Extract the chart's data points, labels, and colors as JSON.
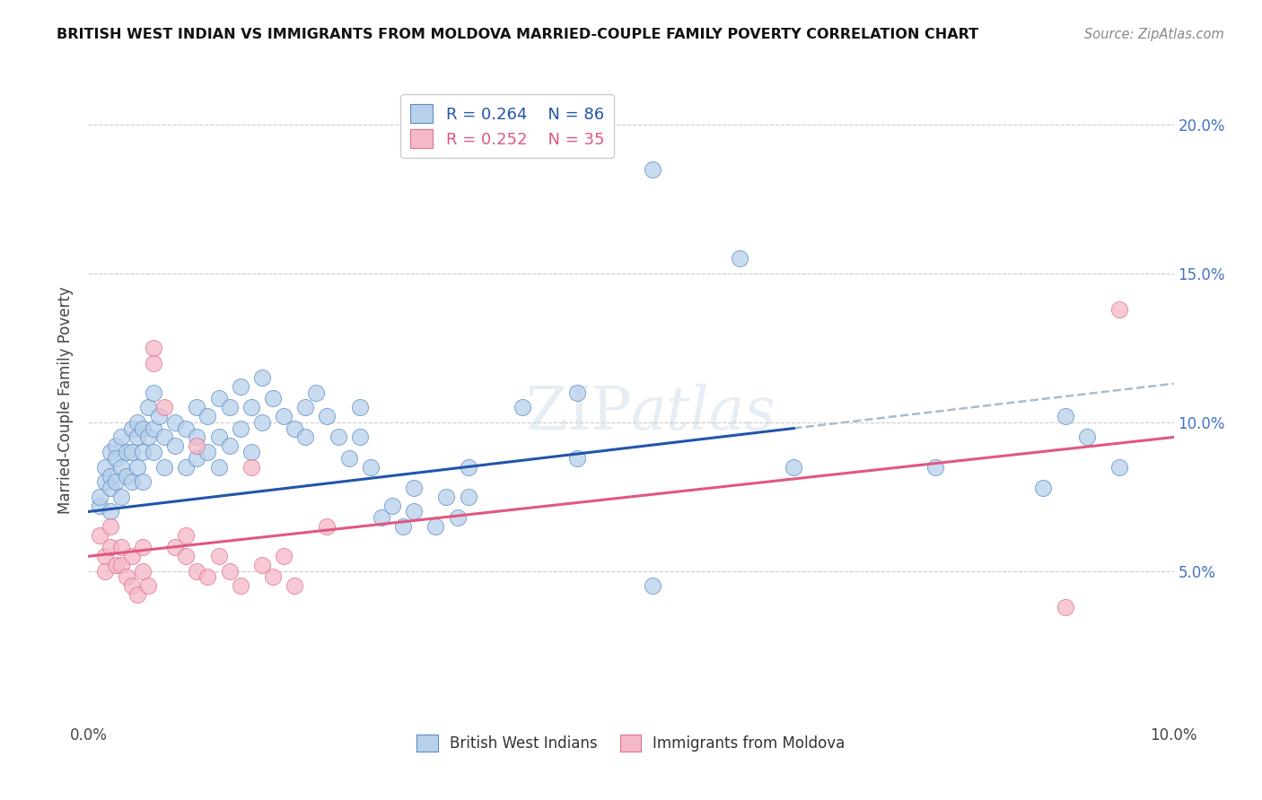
{
  "title": "BRITISH WEST INDIAN VS IMMIGRANTS FROM MOLDOVA MARRIED-COUPLE FAMILY POVERTY CORRELATION CHART",
  "source": "Source: ZipAtlas.com",
  "ylabel": "Married-Couple Family Poverty",
  "xlim": [
    0.0,
    10.0
  ],
  "ylim": [
    0.0,
    21.5
  ],
  "ytick_values": [
    5.0,
    10.0,
    15.0,
    20.0
  ],
  "ytick_labels": [
    "5.0%",
    "10.0%",
    "15.0%",
    "20.0%"
  ],
  "blue_color": "#b8d0ea",
  "blue_edge_color": "#5b8ec8",
  "blue_line_color": "#2255aa",
  "pink_color": "#f5b8c8",
  "pink_edge_color": "#e07090",
  "pink_line_color": "#e05880",
  "dashed_color": "#aabbcc",
  "blue_line_x0": 0.0,
  "blue_line_y0": 7.0,
  "blue_line_x1": 6.5,
  "blue_line_y1": 9.8,
  "blue_dash_x0": 6.5,
  "blue_dash_y0": 9.8,
  "blue_dash_x1": 10.0,
  "blue_dash_y1": 11.3,
  "pink_line_x0": 0.0,
  "pink_line_y0": 5.5,
  "pink_line_x1": 10.0,
  "pink_line_y1": 9.5,
  "blue_scatter": [
    [
      0.1,
      7.2
    ],
    [
      0.1,
      7.5
    ],
    [
      0.15,
      8.0
    ],
    [
      0.15,
      8.5
    ],
    [
      0.2,
      9.0
    ],
    [
      0.2,
      8.2
    ],
    [
      0.2,
      7.8
    ],
    [
      0.2,
      7.0
    ],
    [
      0.25,
      9.2
    ],
    [
      0.25,
      8.8
    ],
    [
      0.25,
      8.0
    ],
    [
      0.3,
      9.5
    ],
    [
      0.3,
      8.5
    ],
    [
      0.3,
      7.5
    ],
    [
      0.35,
      9.0
    ],
    [
      0.35,
      8.2
    ],
    [
      0.4,
      9.8
    ],
    [
      0.4,
      9.0
    ],
    [
      0.4,
      8.0
    ],
    [
      0.45,
      10.0
    ],
    [
      0.45,
      9.5
    ],
    [
      0.45,
      8.5
    ],
    [
      0.5,
      9.8
    ],
    [
      0.5,
      9.0
    ],
    [
      0.5,
      8.0
    ],
    [
      0.55,
      10.5
    ],
    [
      0.55,
      9.5
    ],
    [
      0.6,
      11.0
    ],
    [
      0.6,
      9.8
    ],
    [
      0.6,
      9.0
    ],
    [
      0.65,
      10.2
    ],
    [
      0.7,
      9.5
    ],
    [
      0.7,
      8.5
    ],
    [
      0.8,
      10.0
    ],
    [
      0.8,
      9.2
    ],
    [
      0.9,
      9.8
    ],
    [
      0.9,
      8.5
    ],
    [
      1.0,
      10.5
    ],
    [
      1.0,
      9.5
    ],
    [
      1.0,
      8.8
    ],
    [
      1.1,
      10.2
    ],
    [
      1.1,
      9.0
    ],
    [
      1.2,
      10.8
    ],
    [
      1.2,
      9.5
    ],
    [
      1.2,
      8.5
    ],
    [
      1.3,
      10.5
    ],
    [
      1.3,
      9.2
    ],
    [
      1.4,
      11.2
    ],
    [
      1.4,
      9.8
    ],
    [
      1.5,
      10.5
    ],
    [
      1.5,
      9.0
    ],
    [
      1.6,
      11.5
    ],
    [
      1.6,
      10.0
    ],
    [
      1.7,
      10.8
    ],
    [
      1.8,
      10.2
    ],
    [
      1.9,
      9.8
    ],
    [
      2.0,
      10.5
    ],
    [
      2.0,
      9.5
    ],
    [
      2.1,
      11.0
    ],
    [
      2.2,
      10.2
    ],
    [
      2.3,
      9.5
    ],
    [
      2.4,
      8.8
    ],
    [
      2.5,
      10.5
    ],
    [
      2.5,
      9.5
    ],
    [
      2.6,
      8.5
    ],
    [
      2.7,
      6.8
    ],
    [
      2.8,
      7.2
    ],
    [
      2.9,
      6.5
    ],
    [
      3.0,
      7.8
    ],
    [
      3.0,
      7.0
    ],
    [
      3.2,
      6.5
    ],
    [
      3.3,
      7.5
    ],
    [
      3.4,
      6.8
    ],
    [
      3.5,
      8.5
    ],
    [
      3.5,
      7.5
    ],
    [
      4.0,
      10.5
    ],
    [
      4.5,
      8.8
    ],
    [
      4.5,
      11.0
    ],
    [
      5.2,
      18.5
    ],
    [
      5.2,
      4.5
    ],
    [
      6.0,
      15.5
    ],
    [
      6.5,
      8.5
    ],
    [
      7.8,
      8.5
    ],
    [
      8.8,
      7.8
    ],
    [
      9.0,
      10.2
    ],
    [
      9.2,
      9.5
    ],
    [
      9.5,
      8.5
    ]
  ],
  "pink_scatter": [
    [
      0.1,
      6.2
    ],
    [
      0.15,
      5.5
    ],
    [
      0.15,
      5.0
    ],
    [
      0.2,
      6.5
    ],
    [
      0.2,
      5.8
    ],
    [
      0.25,
      5.2
    ],
    [
      0.3,
      5.8
    ],
    [
      0.3,
      5.2
    ],
    [
      0.35,
      4.8
    ],
    [
      0.4,
      5.5
    ],
    [
      0.4,
      4.5
    ],
    [
      0.45,
      4.2
    ],
    [
      0.5,
      5.8
    ],
    [
      0.5,
      5.0
    ],
    [
      0.55,
      4.5
    ],
    [
      0.6,
      12.5
    ],
    [
      0.6,
      12.0
    ],
    [
      0.7,
      10.5
    ],
    [
      0.8,
      5.8
    ],
    [
      0.9,
      6.2
    ],
    [
      0.9,
      5.5
    ],
    [
      1.0,
      5.0
    ],
    [
      1.0,
      9.2
    ],
    [
      1.1,
      4.8
    ],
    [
      1.2,
      5.5
    ],
    [
      1.3,
      5.0
    ],
    [
      1.4,
      4.5
    ],
    [
      1.5,
      8.5
    ],
    [
      1.6,
      5.2
    ],
    [
      1.7,
      4.8
    ],
    [
      1.8,
      5.5
    ],
    [
      1.9,
      4.5
    ],
    [
      2.2,
      6.5
    ],
    [
      9.0,
      3.8
    ],
    [
      9.5,
      13.8
    ]
  ]
}
